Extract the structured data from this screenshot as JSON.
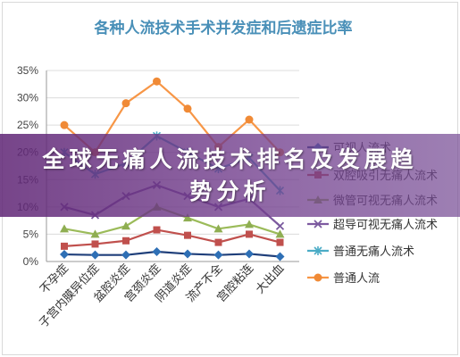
{
  "banner": {
    "text": "全球无痛人流技术排名及发展趋势分析"
  },
  "chart_data": {
    "type": "line",
    "title": "各种人流技术手术并发症和后遗症比率",
    "xlabel": "",
    "ylabel": "",
    "categories": [
      "不孕症",
      "子宫内膜异位症",
      "盆腔炎症",
      "宫颈炎症",
      "阴道炎症",
      "流产不全",
      "宫腔粘连",
      "大出血"
    ],
    "ylim": [
      0,
      35
    ],
    "yticks": [
      0,
      5,
      10,
      15,
      20,
      25,
      30,
      35
    ],
    "ytick_labels": [
      "0%",
      "5%",
      "10%",
      "15%",
      "20%",
      "25%",
      "30%",
      "35%"
    ],
    "grid": true,
    "legend_position": "right",
    "series": [
      {
        "name": "可视人流术",
        "values": [
          1.3,
          1.2,
          1.2,
          1.8,
          1.4,
          1.2,
          1.4,
          0.9
        ],
        "color": "#2e6fb5",
        "line_color": "#1f3f7a",
        "marker": "diamond"
      },
      {
        "name": "双腔吸引无痛人流术",
        "values": [
          2.8,
          3.2,
          3.8,
          5.8,
          4.8,
          3.5,
          5.0,
          3.5
        ],
        "color": "#c0504d",
        "line_color": "#c0504d",
        "marker": "square"
      },
      {
        "name": "微管可视无痛人流术",
        "values": [
          6.0,
          5.0,
          6.5,
          10.0,
          8.0,
          6.0,
          6.8,
          5.0
        ],
        "color": "#8fae52",
        "line_color": "#9bbb59",
        "marker": "triangle"
      },
      {
        "name": "超导可视无痛人流术",
        "values": [
          10.0,
          8.5,
          12.0,
          14.0,
          12.0,
          10.0,
          11.5,
          6.5
        ],
        "color": "#7a5a9e",
        "line_color": "#7e5aa0",
        "marker": "x"
      },
      {
        "name": "普通无痛人流术",
        "values": [
          20.0,
          16.0,
          18.0,
          23.0,
          20.0,
          17.0,
          19.0,
          13.0
        ],
        "color": "#4bacc6",
        "line_color": "#4bacc6",
        "marker": "star"
      },
      {
        "name": "普通人流",
        "values": [
          25.0,
          20.0,
          29.0,
          33.0,
          28.0,
          21.0,
          26.0,
          20.0
        ],
        "color": "#f08a36",
        "line_color": "#f79646",
        "marker": "circle"
      }
    ]
  }
}
